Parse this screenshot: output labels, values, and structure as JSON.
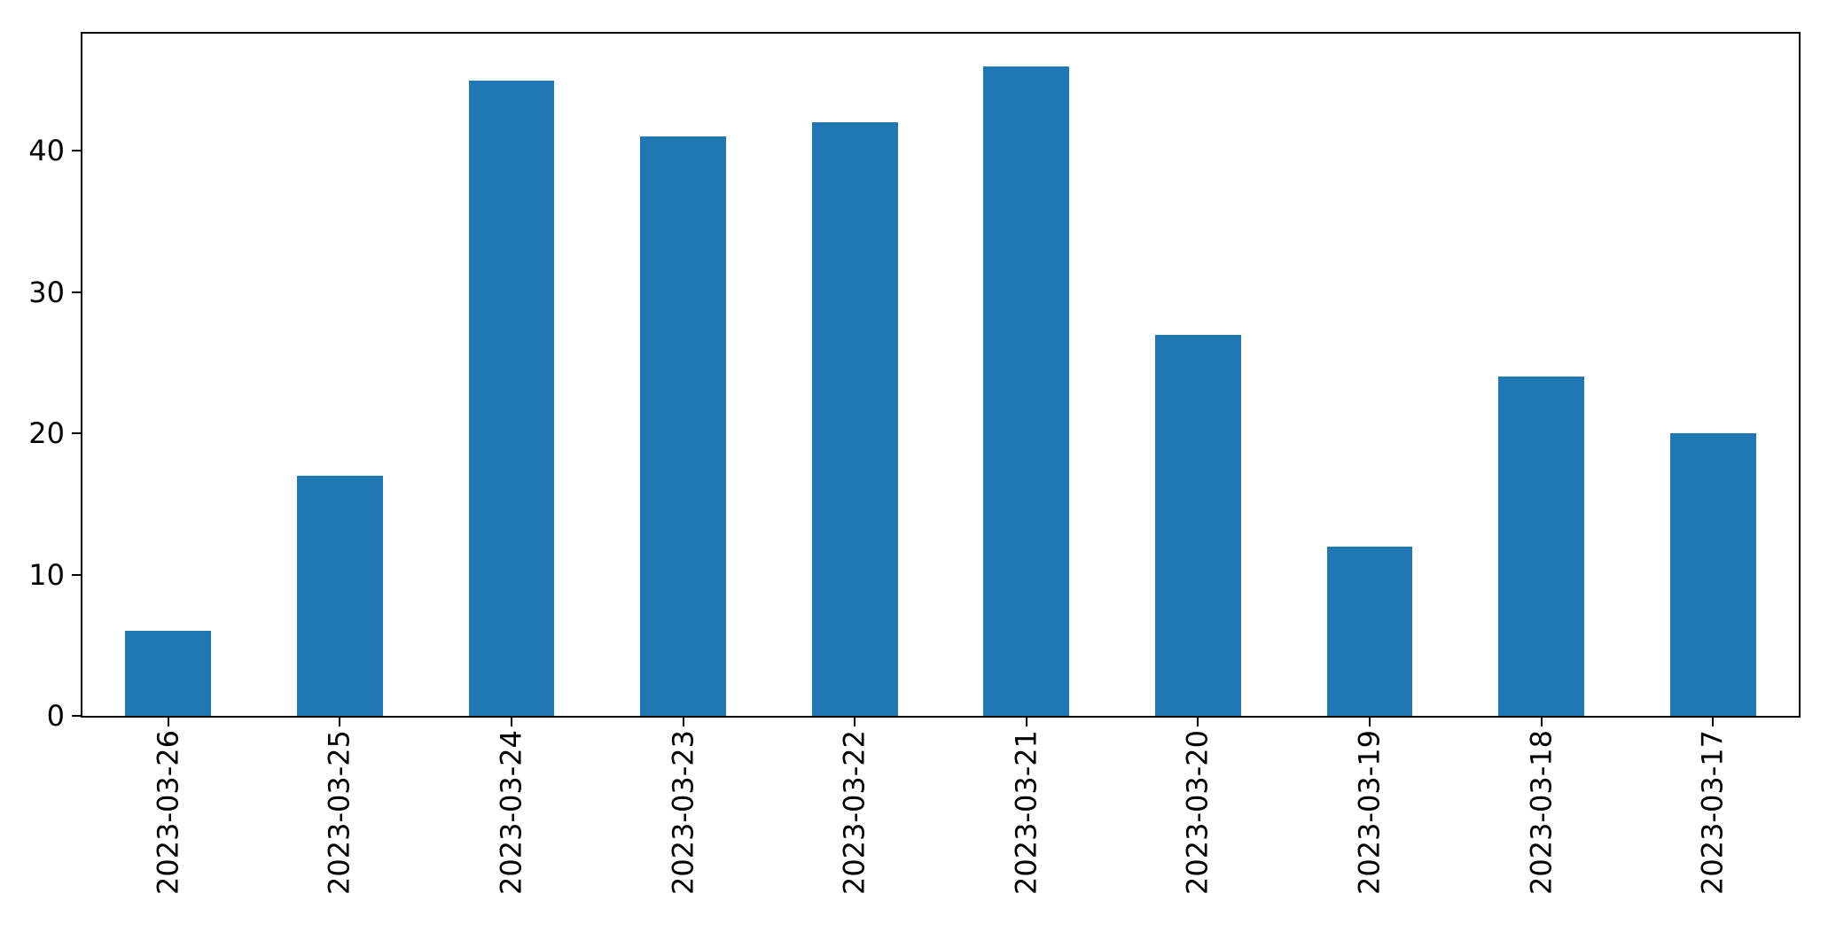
{
  "figure": {
    "background": "#ffffff",
    "plot_border_color": "#000000"
  },
  "chart_data": {
    "type": "bar",
    "categories": [
      "2023-03-26",
      "2023-03-25",
      "2023-03-24",
      "2023-03-23",
      "2023-03-22",
      "2023-03-21",
      "2023-03-20",
      "2023-03-19",
      "2023-03-18",
      "2023-03-17"
    ],
    "values": [
      6,
      17,
      45,
      41,
      42,
      46,
      27,
      12,
      24,
      20
    ],
    "title": "",
    "xlabel": "",
    "ylabel": "",
    "ylim": [
      0,
      48.3
    ],
    "yticks": [
      0,
      10,
      20,
      30,
      40
    ],
    "xtick_rotation_deg": 90,
    "bar_color": "#1f77b4",
    "bar_width_fraction": 0.5,
    "grid": false,
    "legend": "none",
    "axis_color": "#000000",
    "tick_label_color": "#000000"
  }
}
